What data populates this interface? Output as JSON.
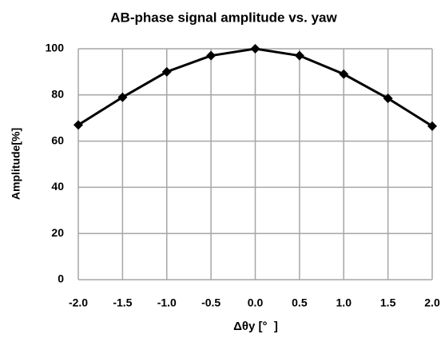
{
  "chart_data": {
    "type": "line",
    "title": "AB-phase signal amplitude vs. yaw",
    "x_label": "Δθy [°  ]",
    "y_label": "Amplitude[%]",
    "x": [
      -2,
      -1.5,
      -1,
      -0.5,
      0,
      0.5,
      1,
      1.5,
      2
    ],
    "series": [
      {
        "name": "Amplitude",
        "color": "#000000",
        "values": [
          67,
          79,
          90,
          97,
          100,
          97,
          89,
          78.5,
          66.5
        ]
      }
    ],
    "xlim": [
      -2,
      2
    ],
    "xticks": [
      {
        "value": -2,
        "label": "-2.0"
      },
      -1.5,
      {
        "value": -1,
        "label": "-1.0"
      },
      -0.5,
      {
        "value": 0,
        "label": "0.0"
      },
      0.5,
      {
        "value": 1,
        "label": "1.0"
      },
      1.5,
      {
        "value": 2,
        "label": "2.0"
      }
    ],
    "ylim": [
      0,
      100
    ],
    "yticks": [
      0,
      20,
      40,
      60,
      80,
      100
    ],
    "grid": true,
    "marker": "diamond"
  }
}
